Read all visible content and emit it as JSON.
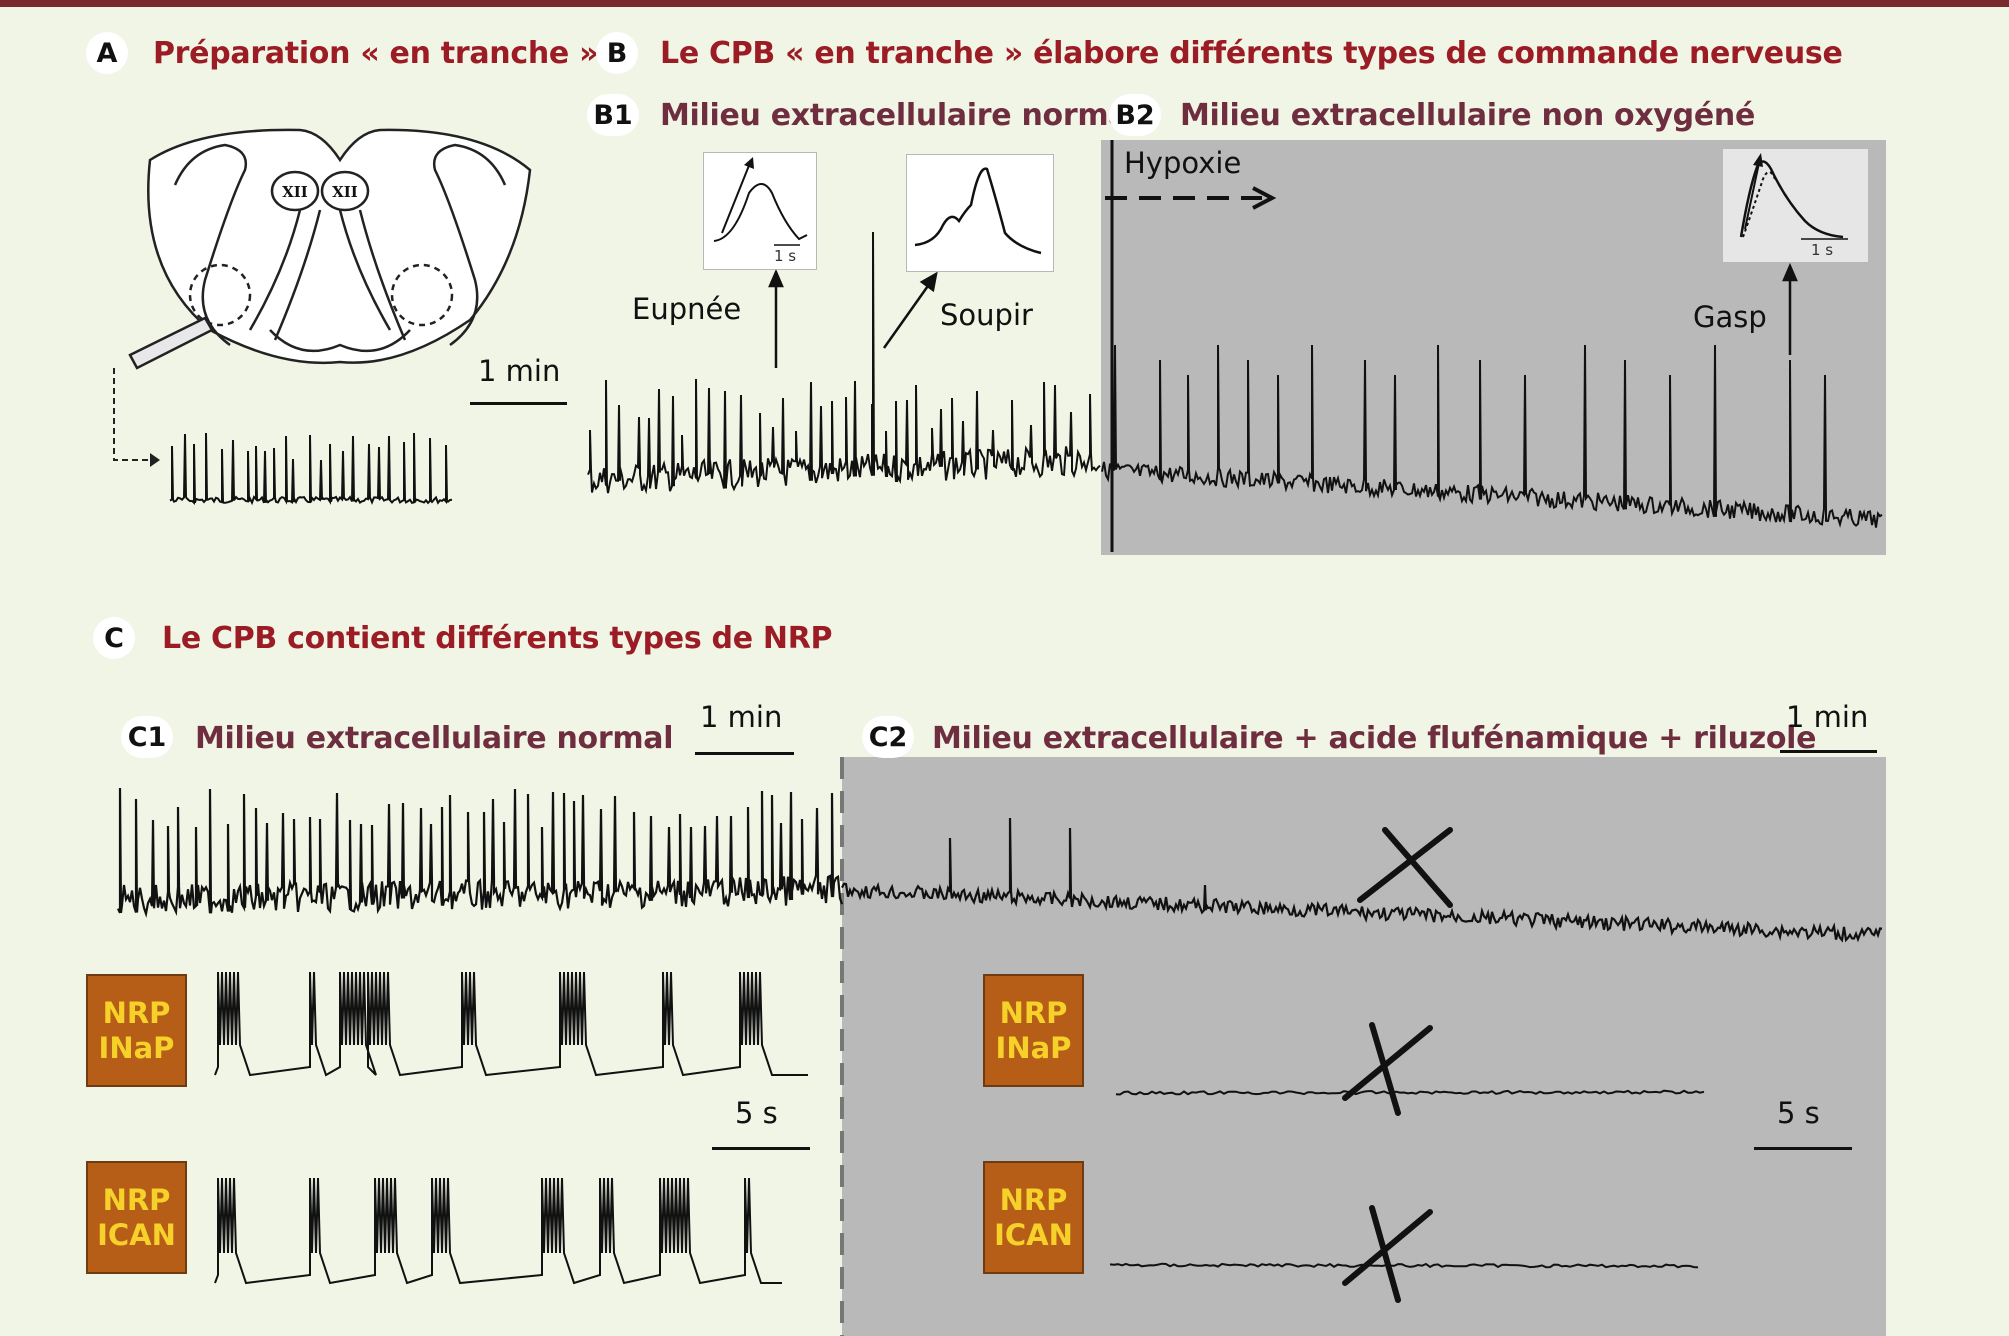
{
  "panels": {
    "A": {
      "letter": "A",
      "title": "Préparation « en tranche »",
      "scale": "1 min",
      "nuclei": [
        "XII",
        "XII"
      ]
    },
    "B": {
      "letter": "B",
      "title": "Le CPB « en tranche » élabore différents types de commande nerveuse"
    },
    "B1": {
      "letter": "B1",
      "title": "Milieu extracellulaire normal",
      "eupnea": "Eupnée",
      "sigh": "Soupir",
      "inset_scale": "1 s"
    },
    "B2": {
      "letter": "B2",
      "title": "Milieu extracellulaire non oxygéné",
      "hypoxia": "Hypoxie",
      "gasp": "Gasp",
      "inset_scale": "1 s"
    },
    "C": {
      "letter": "C",
      "title": "Le CPB contient différents types de NRP"
    },
    "C1": {
      "letter": "C1",
      "title": "Milieu extracellulaire normal",
      "scale_min": "1 min",
      "scale_s": "5 s"
    },
    "C2": {
      "letter": "C2",
      "title": "Milieu extracellulaire + acide flufénamique + riluzole",
      "scale_min": "1 min",
      "scale_s": "5 s"
    }
  },
  "neuron_boxes": [
    {
      "line1": "NRP",
      "line2": "INaP"
    },
    {
      "line1": "NRP",
      "line2": "ICAN"
    }
  ],
  "colors": {
    "background": "#f1f5e6",
    "title_red": "#9b1c24",
    "title_dark": "#6e2e40",
    "grey_panel": "#b9b9b9",
    "nrp_box": "#b65e18",
    "nrp_text": "#f6d12a"
  }
}
